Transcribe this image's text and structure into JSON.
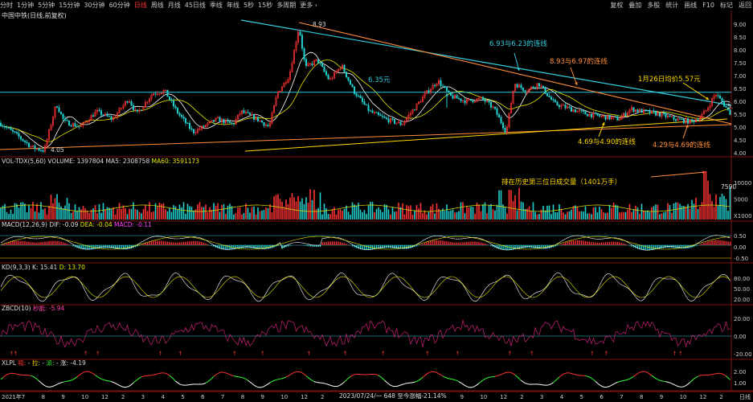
{
  "toolbar": {
    "timeframes": [
      {
        "label": "分时",
        "active": false
      },
      {
        "label": "1分钟",
        "active": false
      },
      {
        "label": "5分钟",
        "active": false
      },
      {
        "label": "15分钟",
        "active": false
      },
      {
        "label": "30分钟",
        "active": false
      },
      {
        "label": "60分钟",
        "active": false
      },
      {
        "label": "日线",
        "active": true
      },
      {
        "label": "周线",
        "active": false
      },
      {
        "label": "月线",
        "active": false
      },
      {
        "label": "45日线",
        "active": false
      },
      {
        "label": "季线",
        "active": false
      },
      {
        "label": "年线",
        "active": false
      },
      {
        "label": "5秒",
        "active": false
      },
      {
        "label": "15秒",
        "active": false
      },
      {
        "label": "多周期",
        "active": false
      },
      {
        "label": "更多 ›",
        "active": false
      }
    ],
    "tools": [
      "复权",
      "叠加",
      "多股",
      "统计",
      "画线",
      "F10",
      "标记",
      "返回"
    ]
  },
  "stock_title": "中国中铁(日线,前复权)",
  "panels": {
    "vol": {
      "name": "VOL-TDX(5,60)",
      "volume": "VOLUME: 1397804",
      "ma5": "MA5: 2308758",
      "ma60": "MA60: 3591173"
    },
    "macd": {
      "name": "MACD(12,26,9)",
      "dif": "DIF: -0.09",
      "dea": "DEA: -0.04",
      "macd": "MACD: -0.11"
    },
    "kd": {
      "name": "KD(9,3,3)",
      "k": "K: 15.41",
      "d": "D: 13.70"
    },
    "zbcd": {
      "name": "ZBCD(10)",
      "v": "秒能: -5.94"
    },
    "xlpl": {
      "name": "XLPL",
      "a": "吸:",
      "b": "拉:",
      "c": "派:",
      "d": "涨: -4.19"
    }
  },
  "annotations": {
    "high": "8.93",
    "low": "4.05",
    "mid": "6.35元",
    "line1": "6.93与6.23的连线",
    "line2": "8.93与6.97的连线",
    "line3": "1月26日均价5.57元",
    "line4": "4.69与4.90的连线",
    "line5": "4.29与4.69的连线",
    "vol_note": "排在历史第三位日成交量（1401万手）",
    "vol_peak": "7590",
    "right_small": "5.",
    "xbar": "2023/07/24/一 648 至今涨幅-21.14%"
  },
  "colors": {
    "up": "#ff3333",
    "down": "#22d0d0",
    "ma": "#e8e800",
    "cyan": "#33ccdd",
    "orange": "#ff8c3a",
    "yellow": "#ffd700",
    "magenta": "#cc2277",
    "grid": "#7a1010"
  },
  "chart_data": {
    "type": "candlestick",
    "price_axis": {
      "ticks": [
        "9.00",
        "8.50",
        "8.00",
        "7.50",
        "7.00",
        "6.50",
        "6.00",
        "5.50",
        "5.00",
        "4.50",
        "4.00"
      ],
      "range": [
        3.9,
        9.25
      ]
    },
    "vol_axis": {
      "ticks": [
        "10000",
        "5000",
        "X1000"
      ]
    },
    "macd_axis": {
      "ticks": [
        "0.50",
        "0.00",
        "-0.50"
      ]
    },
    "kd_axis": {
      "ticks": [
        "80.00",
        "50.00",
        "20.00"
      ]
    },
    "zbcd_axis": {
      "ticks": [
        "20.00",
        "0.00",
        "-20.00"
      ]
    },
    "xlpl_axis": {
      "ticks": [
        "2.00",
        "1.00"
      ]
    },
    "x_labels": [
      "2021年",
      "7",
      "8",
      "9",
      "10",
      "12",
      "2",
      "3",
      "4",
      "5",
      "6",
      "7",
      "8",
      "9",
      "10",
      "12",
      "2",
      "3",
      "4",
      "5",
      "6",
      "7",
      "8",
      "9",
      "10",
      "12",
      "2",
      "3",
      "4",
      "5",
      "6",
      "7",
      "8",
      "9",
      "10",
      "12",
      "2",
      "日线"
    ],
    "price_anchors": [
      [
        0,
        5.15
      ],
      [
        20,
        4.7
      ],
      [
        40,
        4.2
      ],
      [
        55,
        4.08
      ],
      [
        70,
        5.9
      ],
      [
        80,
        5.2
      ],
      [
        100,
        5.0
      ],
      [
        120,
        5.6
      ],
      [
        140,
        5.3
      ],
      [
        160,
        6.1
      ],
      [
        170,
        5.5
      ],
      [
        190,
        6.3
      ],
      [
        205,
        6.4
      ],
      [
        220,
        5.6
      ],
      [
        240,
        4.8
      ],
      [
        250,
        4.95
      ],
      [
        270,
        5.3
      ],
      [
        290,
        5.1
      ],
      [
        300,
        5.6
      ],
      [
        320,
        5.3
      ],
      [
        335,
        5.0
      ],
      [
        345,
        6.3
      ],
      [
        360,
        7.0
      ],
      [
        372,
        8.9
      ],
      [
        380,
        7.3
      ],
      [
        395,
        7.6
      ],
      [
        410,
        6.8
      ],
      [
        425,
        7.4
      ],
      [
        440,
        6.4
      ],
      [
        460,
        5.6
      ],
      [
        480,
        5.3
      ],
      [
        500,
        5.1
      ],
      [
        515,
        5.7
      ],
      [
        530,
        6.3
      ],
      [
        545,
        6.8
      ],
      [
        560,
        6.2
      ],
      [
        580,
        6.0
      ],
      [
        600,
        6.1
      ],
      [
        615,
        5.7
      ],
      [
        630,
        4.8
      ],
      [
        640,
        6.7
      ],
      [
        655,
        6.4
      ],
      [
        670,
        6.7
      ],
      [
        690,
        5.9
      ],
      [
        710,
        5.7
      ],
      [
        730,
        5.5
      ],
      [
        750,
        5.4
      ],
      [
        770,
        5.3
      ],
      [
        785,
        5.7
      ],
      [
        800,
        5.6
      ],
      [
        820,
        5.5
      ],
      [
        840,
        5.3
      ],
      [
        860,
        5.2
      ],
      [
        872,
        5.4
      ],
      [
        880,
        5.7
      ],
      [
        890,
        6.3
      ],
      [
        898,
        6.0
      ],
      [
        908,
        5.55
      ]
    ]
  }
}
